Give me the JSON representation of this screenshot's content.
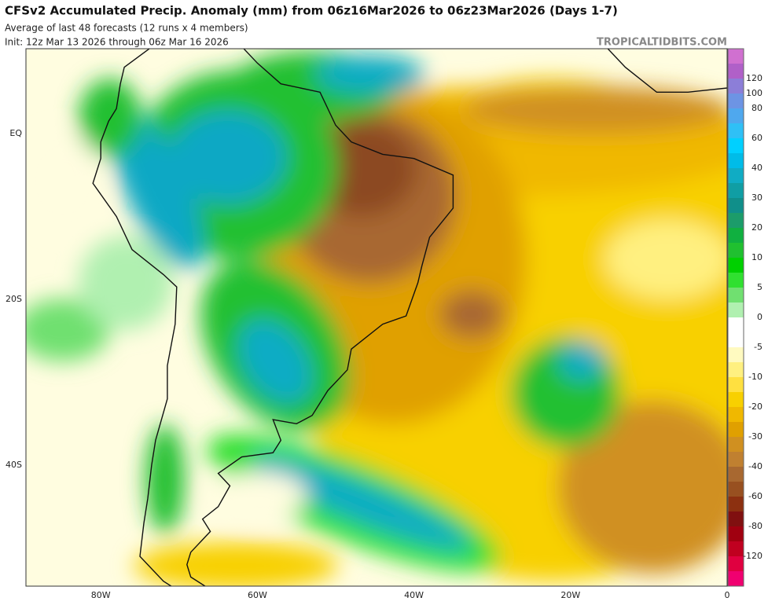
{
  "header": {
    "title": "CFSv2 Accumulated Precip. Anomaly (mm) from 06z16Mar2026 to 06z23Mar2026 (Days 1-7)",
    "subtitle": "Average of last 48 forecasts (12 runs x 4 members)",
    "init": "Init: 12z Mar 13 2026 through 06z Mar 16 2026",
    "credit": "TROPICALTIDBITS.COM"
  },
  "map": {
    "lat_labels": [
      "EQ",
      "20S",
      "40S"
    ],
    "lon_labels": [
      "80W",
      "60W",
      "40W",
      "20W",
      "0"
    ]
  },
  "colorbar": {
    "labels": [
      120,
      100,
      80,
      60,
      40,
      30,
      20,
      10,
      5,
      0,
      -5,
      -10,
      -20,
      -30,
      -40,
      -60,
      -80,
      -120
    ],
    "colors": [
      "#d070d0",
      "#b060c8",
      "#8c7ed8",
      "#6d94e4",
      "#4fa8ee",
      "#2fc0f6",
      "#00d0ff",
      "#00bce8",
      "#10acc4",
      "#109ea4",
      "#108f8a",
      "#1c9c6a",
      "#10b040",
      "#20c030",
      "#00d000",
      "#30e030",
      "#70e070",
      "#b0f0b0",
      "#ffffff",
      "#ffffff",
      "#fffac0",
      "#fff080",
      "#ffe040",
      "#f8d000",
      "#f0b800",
      "#e0a000",
      "#d09020",
      "#c08030",
      "#a86830",
      "#985020",
      "#8c3010",
      "#801010",
      "#a00010",
      "#c00020",
      "#e00040",
      "#f00070"
    ]
  }
}
